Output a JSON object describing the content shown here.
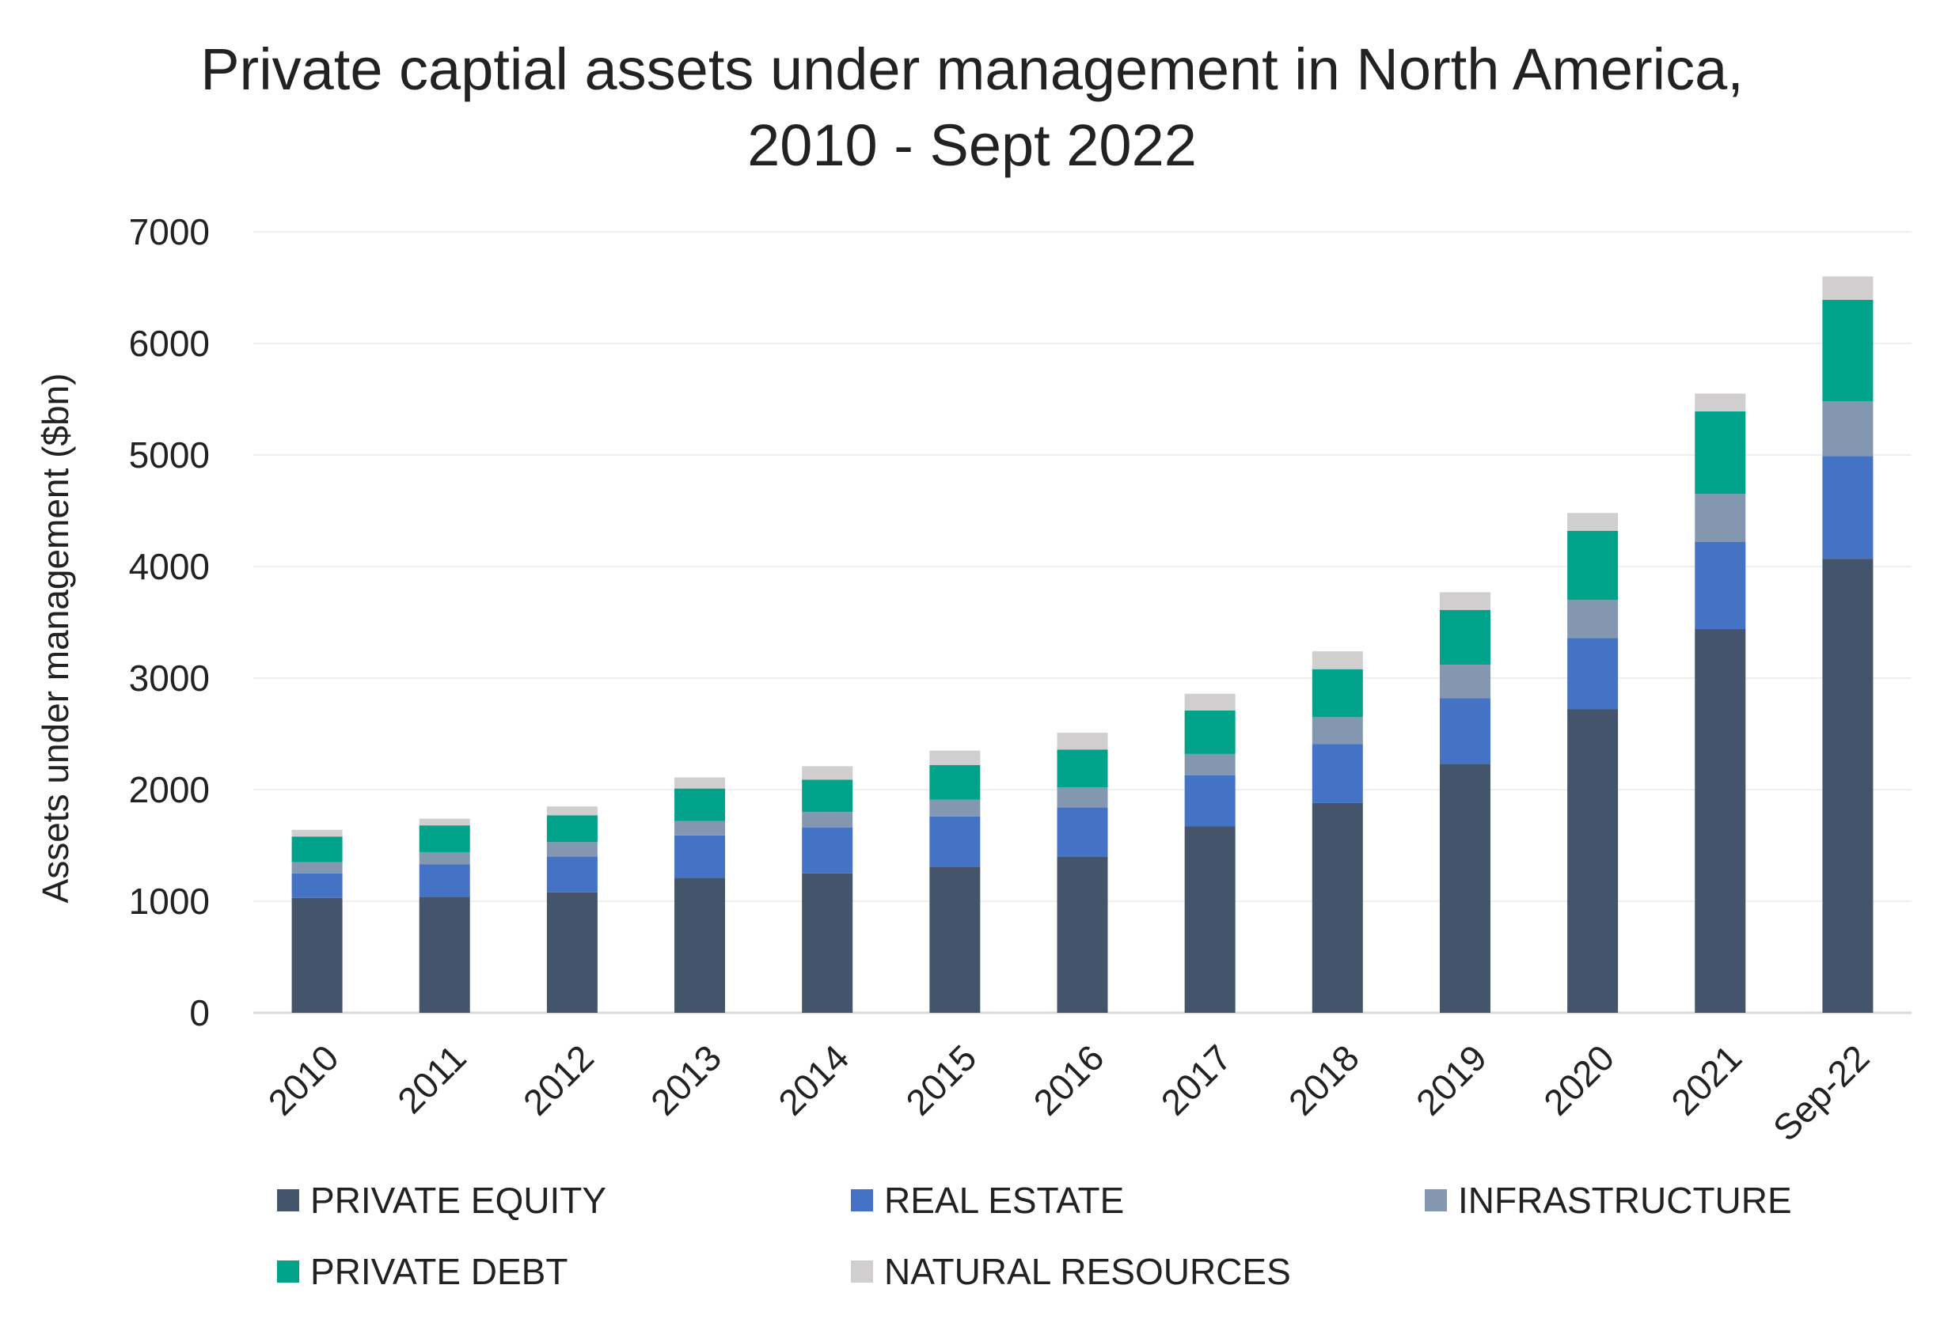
{
  "chart_data": {
    "type": "bar",
    "stacked": true,
    "title_line1": "Private captial assets under management in North America,",
    "title_line2": "2010 - Sept 2022",
    "xlabel": "",
    "ylabel": "Assets under management ($bn)",
    "ylim": [
      0,
      7000
    ],
    "yticks": [
      "0",
      "1000",
      "2000",
      "3000",
      "4000",
      "5000",
      "6000",
      "7000"
    ],
    "grid": true,
    "legend_position": "bottom",
    "categories": [
      "2010",
      "2011",
      "2012",
      "2013",
      "2014",
      "2015",
      "2016",
      "2017",
      "2018",
      "2019",
      "2020",
      "2021",
      "Sep-22"
    ],
    "series": [
      {
        "name": "PRIVATE EQUITY",
        "color": "#44546a",
        "values": [
          1030,
          1040,
          1080,
          1210,
          1250,
          1310,
          1400,
          1670,
          1880,
          2230,
          2720,
          3440,
          4070
        ]
      },
      {
        "name": "REAL ESTATE",
        "color": "#4472c4",
        "values": [
          220,
          290,
          320,
          380,
          410,
          450,
          440,
          460,
          530,
          590,
          640,
          780,
          920
        ]
      },
      {
        "name": "INFRASTRUCTURE",
        "color": "#8497b0",
        "values": [
          100,
          110,
          130,
          130,
          140,
          150,
          180,
          190,
          240,
          300,
          340,
          430,
          490
        ]
      },
      {
        "name": "PRIVATE DEBT",
        "color": "#00a28a",
        "values": [
          230,
          240,
          240,
          290,
          290,
          310,
          340,
          390,
          430,
          490,
          620,
          740,
          910
        ]
      },
      {
        "name": "NATURAL RESOURCES",
        "color": "#d0cece",
        "values": [
          60,
          60,
          80,
          100,
          120,
          130,
          150,
          150,
          160,
          160,
          160,
          160,
          210
        ]
      }
    ]
  }
}
